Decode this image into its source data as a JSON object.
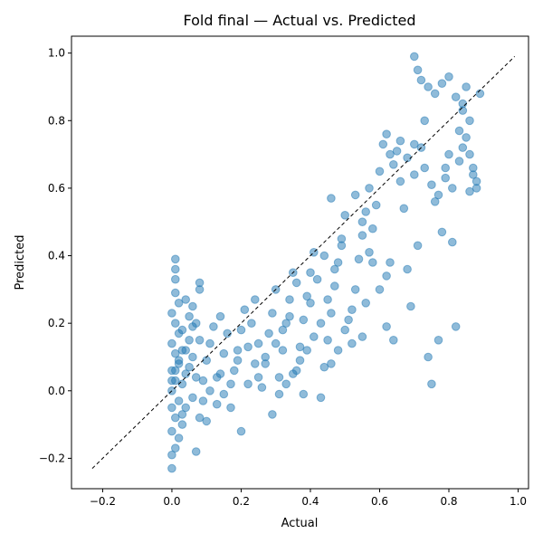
{
  "chart_data": {
    "type": "scatter",
    "title": "Fold final — Actual vs. Predicted",
    "xlabel": "Actual",
    "ylabel": "Predicted",
    "xlim": [
      -0.29,
      1.03
    ],
    "ylim": [
      -0.29,
      1.05
    ],
    "xticks": [
      "−0.2",
      "0.0",
      "0.2",
      "0.4",
      "0.6",
      "0.8",
      "1.0"
    ],
    "yticks": [
      "−0.2",
      "0.0",
      "0.2",
      "0.4",
      "0.6",
      "0.8",
      "1.0"
    ],
    "xtick_values": [
      -0.2,
      0.0,
      0.2,
      0.4,
      0.6,
      0.8,
      1.0
    ],
    "ytick_values": [
      -0.2,
      0.0,
      0.2,
      0.4,
      0.6,
      0.8,
      1.0
    ],
    "reference_line": {
      "x": [
        -0.23,
        0.99
      ],
      "y": [
        -0.23,
        0.99
      ],
      "style": "dashed",
      "color": "#000000"
    },
    "point_color": "#1f77b4",
    "grid": false,
    "series": [
      {
        "points": [
          [
            0.0,
            -0.23
          ],
          [
            0.0,
            -0.19
          ],
          [
            0.01,
            -0.17
          ],
          [
            0.0,
            -0.12
          ],
          [
            0.01,
            -0.08
          ],
          [
            0.0,
            -0.05
          ],
          [
            0.02,
            -0.03
          ],
          [
            0.0,
            0.0
          ],
          [
            0.01,
            0.03
          ],
          [
            0.0,
            0.06
          ],
          [
            0.02,
            0.08
          ],
          [
            0.01,
            0.11
          ],
          [
            0.0,
            0.14
          ],
          [
            0.02,
            0.17
          ],
          [
            0.01,
            0.2
          ],
          [
            0.0,
            0.23
          ],
          [
            0.02,
            0.26
          ],
          [
            0.01,
            0.29
          ],
          [
            0.01,
            0.33
          ],
          [
            0.01,
            0.36
          ],
          [
            0.01,
            0.39
          ],
          [
            0.03,
            -0.1
          ],
          [
            0.04,
            -0.05
          ],
          [
            0.03,
            0.02
          ],
          [
            0.05,
            0.07
          ],
          [
            0.04,
            0.12
          ],
          [
            0.03,
            0.18
          ],
          [
            0.05,
            0.22
          ],
          [
            0.04,
            0.27
          ],
          [
            0.06,
            -0.02
          ],
          [
            0.07,
            0.04
          ],
          [
            0.06,
            0.1
          ],
          [
            0.08,
            0.15
          ],
          [
            0.07,
            0.2
          ],
          [
            0.06,
            0.25
          ],
          [
            0.07,
            -0.18
          ],
          [
            0.08,
            -0.08
          ],
          [
            0.09,
            0.03
          ],
          [
            0.1,
            0.09
          ],
          [
            0.11,
            0.14
          ],
          [
            0.12,
            0.19
          ],
          [
            0.1,
            -0.09
          ],
          [
            0.13,
            -0.04
          ],
          [
            0.14,
            0.05
          ],
          [
            0.15,
            0.11
          ],
          [
            0.16,
            0.17
          ],
          [
            0.14,
            0.22
          ],
          [
            0.08,
            0.3
          ],
          [
            0.08,
            0.32
          ],
          [
            0.18,
            0.06
          ],
          [
            0.19,
            0.12
          ],
          [
            0.2,
            0.18
          ],
          [
            0.21,
            0.24
          ],
          [
            0.2,
            -0.12
          ],
          [
            0.17,
            -0.05
          ],
          [
            0.22,
            0.02
          ],
          [
            0.24,
            0.08
          ],
          [
            0.25,
            0.14
          ],
          [
            0.23,
            0.2
          ],
          [
            0.24,
            0.27
          ],
          [
            0.26,
            0.01
          ],
          [
            0.27,
            0.1
          ],
          [
            0.28,
            0.17
          ],
          [
            0.29,
            0.23
          ],
          [
            0.3,
            0.3
          ],
          [
            0.29,
            -0.07
          ],
          [
            0.31,
            0.04
          ],
          [
            0.32,
            0.12
          ],
          [
            0.33,
            0.2
          ],
          [
            0.34,
            0.27
          ],
          [
            0.35,
            0.35
          ],
          [
            0.36,
            0.06
          ],
          [
            0.37,
            0.13
          ],
          [
            0.38,
            0.21
          ],
          [
            0.39,
            0.28
          ],
          [
            0.4,
            0.35
          ],
          [
            0.41,
            0.41
          ],
          [
            0.38,
            -0.01
          ],
          [
            0.43,
            -0.02
          ],
          [
            0.44,
            0.07
          ],
          [
            0.45,
            0.15
          ],
          [
            0.46,
            0.23
          ],
          [
            0.47,
            0.31
          ],
          [
            0.48,
            0.38
          ],
          [
            0.49,
            0.45
          ],
          [
            0.5,
            0.52
          ],
          [
            0.46,
            0.57
          ],
          [
            0.51,
            0.21
          ],
          [
            0.52,
            0.14
          ],
          [
            0.53,
            0.3
          ],
          [
            0.54,
            0.39
          ],
          [
            0.55,
            0.46
          ],
          [
            0.56,
            0.53
          ],
          [
            0.57,
            0.6
          ],
          [
            0.55,
            0.16
          ],
          [
            0.57,
            0.41
          ],
          [
            0.58,
            0.48
          ],
          [
            0.59,
            0.55
          ],
          [
            0.6,
            0.65
          ],
          [
            0.61,
            0.73
          ],
          [
            0.62,
            0.19
          ],
          [
            0.63,
            0.38
          ],
          [
            0.64,
            0.15
          ],
          [
            0.65,
            0.71
          ],
          [
            0.66,
            0.62
          ],
          [
            0.67,
            0.54
          ],
          [
            0.68,
            0.36
          ],
          [
            0.69,
            0.25
          ],
          [
            0.7,
            0.64
          ],
          [
            0.71,
            0.43
          ],
          [
            0.72,
            0.72
          ],
          [
            0.73,
            0.8
          ],
          [
            0.74,
            0.1
          ],
          [
            0.75,
            0.02
          ],
          [
            0.76,
            0.56
          ],
          [
            0.77,
            0.15
          ],
          [
            0.78,
            0.47
          ],
          [
            0.79,
            0.63
          ],
          [
            0.8,
            0.7
          ],
          [
            0.81,
            0.44
          ],
          [
            0.82,
            0.19
          ],
          [
            0.83,
            0.77
          ],
          [
            0.84,
            0.83
          ],
          [
            0.85,
            0.9
          ],
          [
            0.86,
            0.59
          ],
          [
            0.87,
            0.66
          ],
          [
            0.88,
            0.62
          ],
          [
            0.89,
            0.88
          ],
          [
            0.7,
            0.99
          ],
          [
            0.71,
            0.95
          ],
          [
            0.72,
            0.92
          ],
          [
            0.74,
            0.9
          ],
          [
            0.76,
            0.88
          ],
          [
            0.78,
            0.91
          ],
          [
            0.8,
            0.93
          ],
          [
            0.82,
            0.87
          ],
          [
            0.84,
            0.85
          ],
          [
            0.86,
            0.8
          ],
          [
            0.85,
            0.75
          ],
          [
            0.84,
            0.72
          ],
          [
            0.86,
            0.7
          ],
          [
            0.83,
            0.68
          ],
          [
            0.87,
            0.64
          ],
          [
            0.88,
            0.6
          ],
          [
            0.62,
            0.76
          ],
          [
            0.63,
            0.7
          ],
          [
            0.64,
            0.67
          ],
          [
            0.66,
            0.74
          ],
          [
            0.68,
            0.69
          ],
          [
            0.7,
            0.73
          ],
          [
            0.73,
            0.66
          ],
          [
            0.75,
            0.61
          ],
          [
            0.77,
            0.58
          ],
          [
            0.79,
            0.66
          ],
          [
            0.81,
            0.6
          ],
          [
            0.53,
            0.58
          ],
          [
            0.55,
            0.5
          ],
          [
            0.49,
            0.43
          ],
          [
            0.47,
            0.36
          ],
          [
            0.44,
            0.4
          ],
          [
            0.42,
            0.33
          ],
          [
            0.4,
            0.26
          ],
          [
            0.36,
            0.32
          ],
          [
            0.34,
            0.22
          ],
          [
            0.32,
            0.18
          ],
          [
            0.3,
            0.14
          ],
          [
            0.27,
            0.08
          ],
          [
            0.25,
            0.04
          ],
          [
            0.22,
            0.13
          ],
          [
            0.19,
            0.09
          ],
          [
            0.17,
            0.02
          ],
          [
            0.15,
            -0.01
          ],
          [
            0.13,
            0.04
          ],
          [
            0.11,
            0.0
          ],
          [
            0.09,
            -0.03
          ],
          [
            0.03,
            -0.07
          ],
          [
            0.02,
            -0.14
          ],
          [
            0.04,
            0.05
          ],
          [
            0.05,
            0.15
          ],
          [
            0.06,
            0.19
          ],
          [
            0.02,
            0.09
          ],
          [
            0.03,
            0.12
          ],
          [
            0.01,
            0.06
          ],
          [
            0.0,
            0.03
          ],
          [
            0.58,
            0.38
          ],
          [
            0.6,
            0.3
          ],
          [
            0.62,
            0.34
          ],
          [
            0.56,
            0.26
          ],
          [
            0.52,
            0.24
          ],
          [
            0.5,
            0.18
          ],
          [
            0.48,
            0.12
          ],
          [
            0.46,
            0.08
          ],
          [
            0.45,
            0.27
          ],
          [
            0.43,
            0.2
          ],
          [
            0.41,
            0.16
          ],
          [
            0.39,
            0.12
          ],
          [
            0.37,
            0.09
          ],
          [
            0.35,
            0.05
          ],
          [
            0.33,
            0.02
          ],
          [
            0.31,
            -0.01
          ]
        ]
      }
    ]
  }
}
